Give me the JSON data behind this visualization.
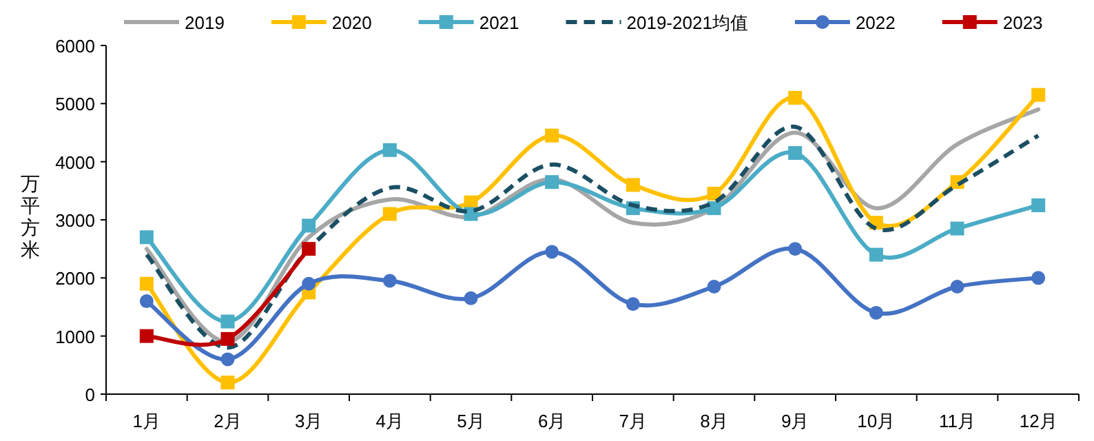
{
  "chart_data": {
    "type": "line",
    "ylabel": "万平方米",
    "categories": [
      "1月",
      "2月",
      "3月",
      "4月",
      "5月",
      "6月",
      "7月",
      "8月",
      "9月",
      "10月",
      "11月",
      "12月"
    ],
    "series": [
      {
        "name": "2019",
        "color": "#a6a6a6",
        "marker": "none",
        "values": [
          2500,
          900,
          2700,
          3350,
          3050,
          3700,
          2950,
          3200,
          4500,
          3200,
          4300,
          4900
        ]
      },
      {
        "name": "2020",
        "color": "#ffc000",
        "marker": "square",
        "values": [
          1900,
          200,
          1750,
          3100,
          3300,
          4450,
          3600,
          3450,
          5100,
          2950,
          3650,
          5150
        ]
      },
      {
        "name": "2021",
        "color": "#4bacc6",
        "marker": "square",
        "values": [
          2700,
          1250,
          2900,
          4200,
          3100,
          3650,
          3200,
          3200,
          4150,
          2400,
          2850,
          3250
        ]
      },
      {
        "name": "2019-2021均值",
        "color": "#1b4f63",
        "marker": "none",
        "line_style": "dashed",
        "values": [
          2400,
          800,
          2500,
          3550,
          3150,
          3950,
          3250,
          3300,
          4600,
          2850,
          3600,
          4450
        ]
      },
      {
        "name": "2022",
        "color": "#4472c4",
        "marker": "circle",
        "values": [
          1600,
          600,
          1900,
          1950,
          1650,
          2450,
          1550,
          1850,
          2500,
          1400,
          1850,
          2000
        ]
      },
      {
        "name": "2023",
        "color": "#c00000",
        "marker": "square",
        "values": [
          1000,
          950,
          2500,
          null,
          null,
          null,
          null,
          null,
          null,
          null,
          null,
          null
        ]
      }
    ],
    "ylim": [
      0,
      6000
    ],
    "yticks": [
      0,
      1000,
      2000,
      3000,
      4000,
      5000,
      6000
    ],
    "grid": false,
    "legend": "top"
  }
}
